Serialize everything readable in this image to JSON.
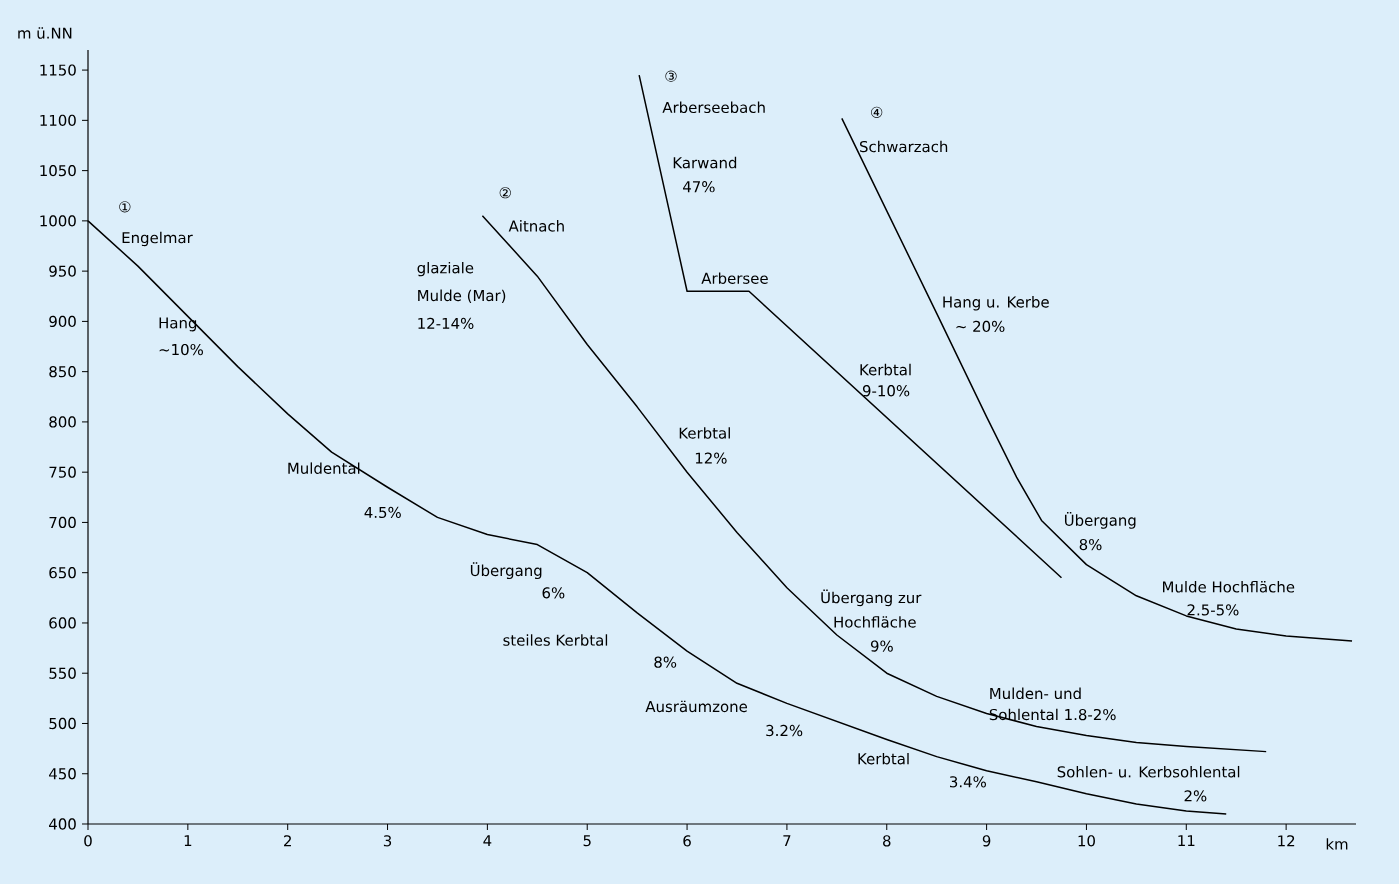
{
  "chart_data": {
    "type": "line",
    "xlabel": "km",
    "ylabel": "m ü.NN",
    "xlim": [
      0,
      12.7
    ],
    "ylim": [
      400,
      1170
    ],
    "xticks": [
      0,
      1,
      2,
      3,
      4,
      5,
      6,
      7,
      8,
      9,
      10,
      11,
      12
    ],
    "yticks": [
      400,
      450,
      500,
      550,
      600,
      650,
      700,
      750,
      800,
      850,
      900,
      950,
      1000,
      1050,
      1100,
      1150
    ],
    "series": [
      {
        "color": "#000000",
        "x": [
          0,
          0.5,
          1,
          1.5,
          2,
          2.44,
          3,
          3.5,
          4,
          4.5,
          5,
          5.5,
          6,
          6.5,
          7,
          7.5,
          8,
          8.5,
          9,
          9.5,
          10,
          10.5,
          11,
          11.4
        ],
        "values": [
          1000,
          955,
          905,
          855,
          808,
          770,
          735,
          705,
          688,
          678,
          650,
          610,
          572,
          540,
          520,
          502,
          484,
          467,
          453,
          442,
          430,
          420,
          413,
          410
        ]
      },
      {
        "color": "#000000",
        "x": [
          3.95,
          4.5,
          5,
          5.5,
          6,
          6.5,
          7,
          7.5,
          8,
          8.5,
          9,
          9.5,
          10,
          10.5,
          11,
          11.8
        ],
        "values": [
          1005,
          945,
          877,
          815,
          750,
          690,
          635,
          588,
          550,
          527,
          510,
          497,
          488,
          481,
          477,
          472
        ]
      },
      {
        "color": "#000000",
        "x": [
          5.52,
          6.0,
          6.62,
          9.75
        ],
        "values": [
          1145,
          930,
          930,
          645
        ]
      },
      {
        "color": "#000000",
        "x": [
          7.55,
          8,
          8.5,
          9,
          9.3,
          9.55,
          10,
          10.5,
          11,
          11.5,
          12,
          12.66
        ],
        "values": [
          1102,
          1010,
          908,
          805,
          745,
          702,
          658,
          627,
          607,
          594,
          587,
          582
        ]
      }
    ],
    "annotations": [
      "①",
      "Engelmar",
      "Hang",
      "∼10%",
      "Muldental",
      "4.5%",
      "Übergang",
      "6%",
      "steiles Kerbtal",
      "8%",
      "Ausräumzone",
      "3.2%",
      "Kerbtal",
      "3.4%",
      "Sohlen- u. Kerbsohlental",
      "2%",
      "②",
      "Aitnach",
      "glaziale",
      "Mulde (Mar)",
      "12-14%",
      "Kerbtal",
      "12%",
      "Übergang zur",
      "Hochfläche",
      "9%",
      "Mulden- und",
      "Sohlental  1.8-2%",
      "③",
      "Arberseebach",
      "Karwand",
      "47%",
      "Arbersee",
      "Kerbtal",
      "9-10%",
      "④",
      "Schwarzach",
      "Hang u. Kerbe",
      "∼ 20%",
      "Übergang",
      "8%",
      "Mulde Hochfläche",
      "2.5-5%"
    ]
  }
}
